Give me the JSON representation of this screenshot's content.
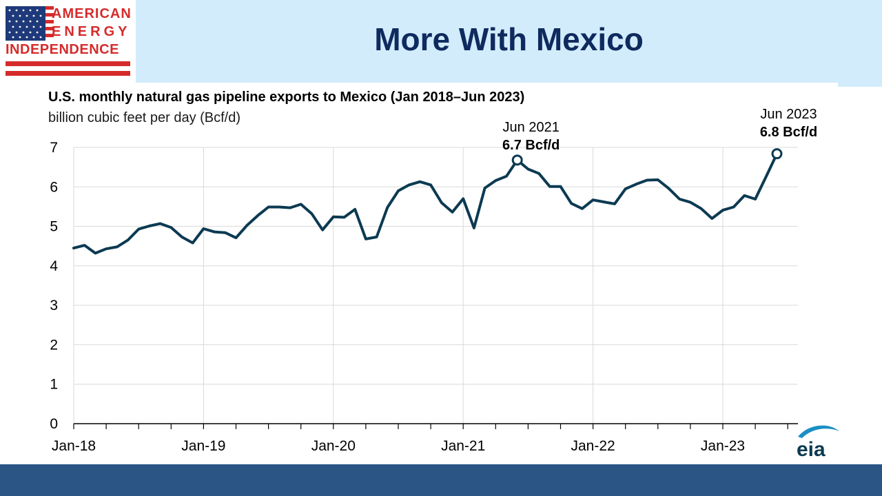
{
  "header": {
    "title": "More With Mexico",
    "background_color": "#d2ecfb",
    "title_color": "#0f2a5e"
  },
  "logo": {
    "lines": [
      "AMERICAN",
      "ENERGY",
      "INDEPENDENCE"
    ],
    "icon": "us-flag-icon",
    "text_color": "#d52b2b"
  },
  "footer": {
    "color": "#2a5585",
    "logo_text": "eia",
    "logo_icon": "eia-logo-icon"
  },
  "chart_data": {
    "type": "line",
    "title": "U.S. monthly natural gas pipeline exports to Mexico (Jan 2018–Jun 2023)",
    "ylabel": "billion cubic feet per day (Bcf/d)",
    "xlabel": "",
    "ylim": [
      0,
      7
    ],
    "yticks": [
      0,
      1,
      2,
      3,
      4,
      5,
      6,
      7
    ],
    "x_tick_labels": [
      "Jan-18",
      "Jan-19",
      "Jan-20",
      "Jan-21",
      "Jan-22",
      "Jan-23"
    ],
    "grid": "horizontal",
    "line_color": "#0c3a52",
    "x_start": "Jan 2018",
    "x_end": "Jun 2023",
    "series": [
      {
        "values": [
          4.45,
          4.52,
          4.32,
          4.43,
          4.48,
          4.65,
          4.93,
          5.01,
          5.07,
          4.97,
          4.73,
          4.58,
          4.94,
          4.86,
          4.84,
          4.71,
          5.02,
          5.27,
          5.49,
          5.49,
          5.47,
          5.56,
          5.32,
          4.91,
          5.24,
          5.23,
          5.43,
          4.68,
          4.73,
          5.48,
          5.9,
          6.05,
          6.13,
          6.05,
          5.6,
          5.36,
          5.7,
          4.96,
          5.97,
          6.16,
          6.27,
          6.68,
          6.45,
          6.34,
          6.01,
          6.01,
          5.58,
          5.45,
          5.67,
          5.62,
          5.57,
          5.95,
          6.07,
          6.17,
          6.18,
          5.96,
          5.69,
          5.61,
          5.45,
          5.2,
          5.41,
          5.49,
          5.78,
          5.69,
          6.26,
          6.84
        ]
      }
    ],
    "annotations": [
      {
        "label": "Jun 2021",
        "value_label": "6.7 Bcf/d",
        "index": 41,
        "value": 6.68
      },
      {
        "label": "Jun 2023",
        "value_label": "6.8 Bcf/d",
        "index": 65,
        "value": 6.84
      }
    ]
  }
}
